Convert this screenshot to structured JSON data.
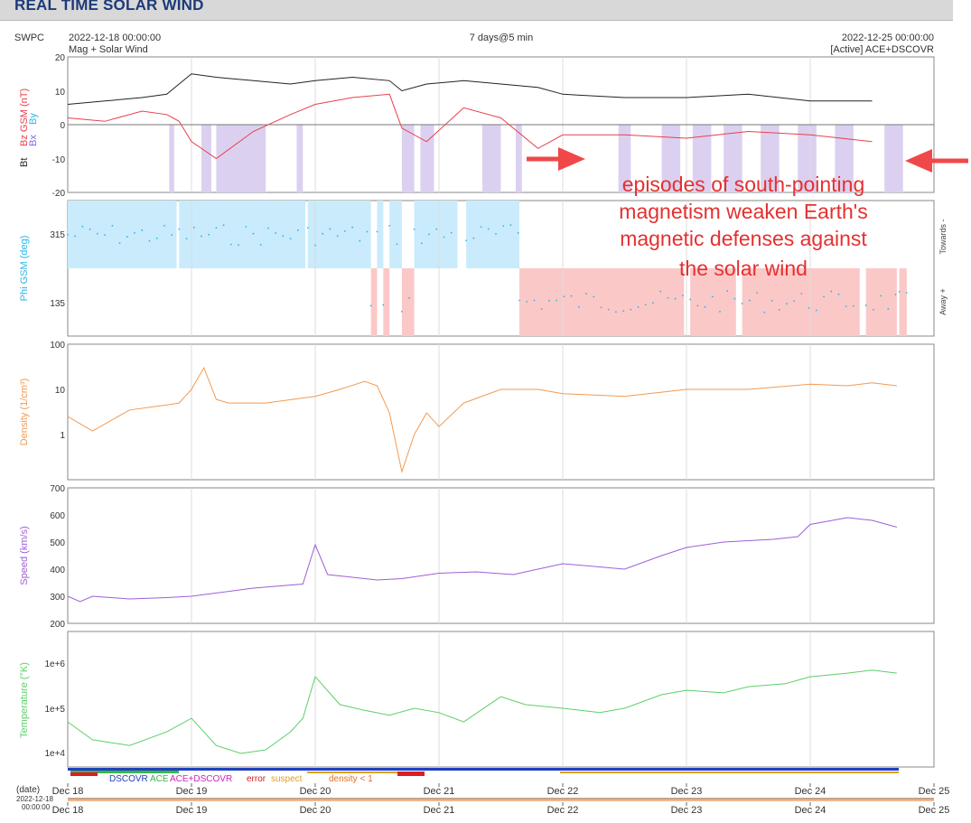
{
  "page": {
    "title": "REAL TIME SOLAR WIND",
    "org": "SWPC",
    "start_time": "2022-12-18 00:00:00",
    "end_time": "2022-12-25 00:00:00",
    "span": "7 days@5 min",
    "source_left": "Mag + Solar Wind",
    "source_right": "[Active] ACE+DSCOVR",
    "annotation": [
      "episodes of south-pointing",
      "magnetism weaken Earth's",
      "magnetic defenses against",
      "the solar wind"
    ],
    "legend": {
      "dscovr": "DSCOVR",
      "ace": "ACE",
      "combo": "ACE+DSCOVR",
      "error": "error",
      "suspect": "suspect",
      "density": "density < 1"
    },
    "date_label": "(date)",
    "date_stamp_line1": "2022-12-18",
    "date_stamp_line2": "00:00:00"
  },
  "chart_data": [
    {
      "type": "line",
      "panel": "mag",
      "ylabel_parts": [
        "Bt",
        "Bz GSM (nT)",
        "Bx",
        "By"
      ],
      "ylim": [
        -20,
        20
      ],
      "yticks": [
        "20",
        "10",
        "0",
        "-10",
        "-20"
      ],
      "series": [
        {
          "name": "Bt",
          "color": "#222222",
          "x": [
            0,
            0.3,
            0.6,
            0.8,
            0.9,
            1.0,
            1.2,
            1.5,
            1.8,
            2.0,
            2.3,
            2.6,
            2.7,
            2.9,
            3.2,
            3.5,
            3.8,
            4.0,
            4.5,
            5.0,
            5.5,
            6.0,
            6.5
          ],
          "values": [
            6,
            7,
            8,
            9,
            12,
            15,
            14,
            13,
            12,
            13,
            14,
            13,
            10,
            12,
            13,
            12,
            11,
            9,
            8,
            8,
            9,
            7,
            7
          ]
        },
        {
          "name": "Bz",
          "color": "#e8404a",
          "x": [
            0,
            0.3,
            0.6,
            0.8,
            0.9,
            1.0,
            1.2,
            1.5,
            1.8,
            2.0,
            2.3,
            2.6,
            2.7,
            2.9,
            3.2,
            3.5,
            3.8,
            4.0,
            4.5,
            5.0,
            5.5,
            6.0,
            6.5
          ],
          "values": [
            2,
            1,
            4,
            3,
            1,
            -5,
            -10,
            -2,
            3,
            6,
            8,
            9,
            -1,
            -5,
            5,
            2,
            -7,
            -3,
            -3,
            -4,
            -2,
            -3,
            -5
          ]
        }
      ],
      "highlight_days": [
        [
          0.82,
          0.86
        ],
        [
          1.08,
          1.16
        ],
        [
          1.2,
          1.6
        ],
        [
          1.85,
          1.9
        ],
        [
          2.7,
          2.8
        ],
        [
          2.85,
          2.96
        ],
        [
          3.35,
          3.5
        ],
        [
          3.62,
          3.67
        ],
        [
          4.45,
          4.55
        ],
        [
          4.8,
          4.95
        ],
        [
          5.05,
          5.2
        ],
        [
          5.3,
          5.45
        ],
        [
          5.6,
          5.75
        ],
        [
          5.9,
          6.05
        ],
        [
          6.2,
          6.35
        ],
        [
          6.6,
          6.75
        ]
      ]
    },
    {
      "type": "scatter",
      "panel": "phi",
      "ylabel": "Phi GSM (deg)",
      "yticks": [
        "315",
        "135"
      ],
      "right_labels": [
        "Towards -",
        "Away +"
      ],
      "toward_segments": [
        [
          0.0,
          0.88
        ],
        [
          0.9,
          1.92
        ],
        [
          1.94,
          2.45
        ],
        [
          2.5,
          2.55
        ],
        [
          2.6,
          2.7
        ],
        [
          2.8,
          3.15
        ],
        [
          3.22,
          3.65
        ]
      ],
      "away_segments": [
        [
          2.45,
          2.5
        ],
        [
          2.55,
          2.6
        ],
        [
          2.7,
          2.8
        ],
        [
          3.65,
          4.98
        ],
        [
          5.03,
          5.4
        ],
        [
          5.45,
          6.4
        ],
        [
          6.45,
          6.7
        ],
        [
          6.72,
          6.78
        ]
      ]
    },
    {
      "type": "line",
      "panel": "density",
      "ylabel": "Density (1/cm³)",
      "scale": "log",
      "ylim": [
        0.1,
        100
      ],
      "yticks": [
        "100",
        "10",
        "1"
      ],
      "color": "#f29a52",
      "x": [
        0,
        0.2,
        0.5,
        0.8,
        0.9,
        1.0,
        1.1,
        1.2,
        1.3,
        1.6,
        2.0,
        2.2,
        2.4,
        2.5,
        2.6,
        2.7,
        2.8,
        2.9,
        3.0,
        3.2,
        3.5,
        3.8,
        4.0,
        4.5,
        5.0,
        5.5,
        6.0,
        6.3,
        6.5,
        6.7
      ],
      "values": [
        2.5,
        1.2,
        3.5,
        4.5,
        5,
        10,
        30,
        6,
        5,
        5,
        7,
        10,
        15,
        12,
        3,
        0.15,
        1,
        3,
        1.5,
        5,
        10,
        10,
        8,
        7,
        10,
        10,
        13,
        12,
        14,
        12
      ]
    },
    {
      "type": "line",
      "panel": "speed",
      "ylabel": "Speed (km/s)",
      "ylim": [
        200,
        700
      ],
      "yticks": [
        "700",
        "600",
        "500",
        "400",
        "300",
        "200"
      ],
      "color": "#9e5fd6",
      "x": [
        0,
        0.1,
        0.2,
        0.5,
        0.8,
        1.0,
        1.5,
        1.9,
        2.0,
        2.1,
        2.3,
        2.5,
        2.7,
        3.0,
        3.3,
        3.6,
        4.0,
        4.5,
        4.8,
        5.0,
        5.3,
        5.7,
        5.9,
        6.0,
        6.3,
        6.5,
        6.7
      ],
      "values": [
        300,
        280,
        300,
        290,
        295,
        300,
        330,
        345,
        490,
        380,
        370,
        360,
        365,
        385,
        390,
        380,
        420,
        400,
        450,
        480,
        500,
        510,
        520,
        565,
        590,
        580,
        555
      ]
    },
    {
      "type": "line",
      "panel": "temperature",
      "ylabel": "Temperature (°K)",
      "scale": "log",
      "ylim": [
        6000,
        2000000
      ],
      "yticks": [
        "1e+6",
        "1e+5",
        "1e+4"
      ],
      "color": "#5bd069",
      "x": [
        0,
        0.2,
        0.5,
        0.8,
        1.0,
        1.2,
        1.4,
        1.6,
        1.8,
        1.9,
        2.0,
        2.2,
        2.4,
        2.6,
        2.8,
        3.0,
        3.2,
        3.5,
        3.7,
        4.0,
        4.3,
        4.5,
        4.8,
        5.0,
        5.3,
        5.5,
        5.8,
        6.0,
        6.3,
        6.5,
        6.7
      ],
      "values": [
        50000,
        20000,
        15000,
        30000,
        60000,
        15000,
        10000,
        12000,
        30000,
        60000,
        500000,
        120000,
        90000,
        70000,
        100000,
        80000,
        50000,
        180000,
        120000,
        100000,
        80000,
        100000,
        200000,
        250000,
        220000,
        300000,
        350000,
        500000,
        600000,
        700000,
        600000
      ]
    }
  ],
  "x_axis": {
    "ticks": [
      "Dec 18",
      "Dec 19",
      "Dec 20",
      "Dec 21",
      "Dec 22",
      "Dec 23",
      "Dec 24",
      "Dec 25"
    ],
    "range_days": [
      0,
      7
    ]
  },
  "colors": {
    "title_text": "#1c3a78",
    "bt": "#222222",
    "bz": "#e8404a",
    "bx": "#7b68ee",
    "by": "#29b6e8",
    "phi": "#29b6e8",
    "toward_fill": "#c9ebfb",
    "away_fill": "#fbc8c8",
    "southward_fill": "#dcd0f0",
    "density": "#f29a52",
    "speed": "#9e5fd6",
    "temperature": "#5bd069",
    "annotation": "#e53030"
  }
}
